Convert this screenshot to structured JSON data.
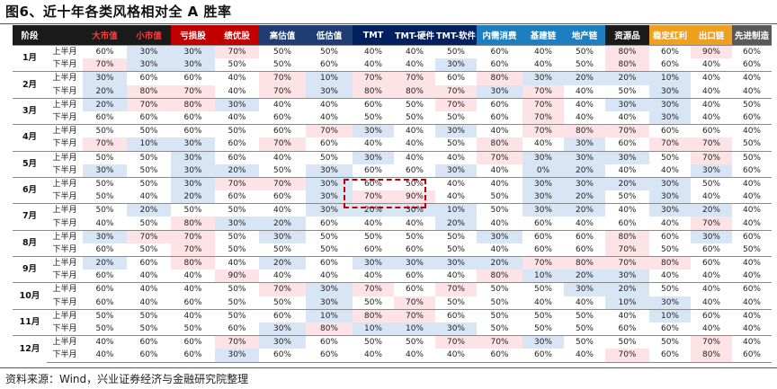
{
  "title": "图6、近十年各类风格相对全 A 胜率",
  "source": "资料来源：Wind，兴业证券经济与金融研究院整理",
  "colors": {
    "header_black": "#1a1a1a",
    "header_red": "#c00000",
    "header_blue": "#1f3d73",
    "header_dblue": "#002060",
    "header_sky": "#1e7fc0",
    "header_orange": "#f0a020",
    "header_gray": "#595959",
    "cell_high": "#fde3e5",
    "cell_low": "#d8e5f5"
  },
  "table": {
    "headers": [
      {
        "label": "阶段",
        "color": "#1a1a1a"
      },
      {
        "label": "",
        "color": "#1a1a1a"
      },
      {
        "label": "大市值",
        "color": "#1a1a1a",
        "text_color": "#ff3b3b"
      },
      {
        "label": "小市值",
        "color": "#1a1a1a",
        "text_color": "#ff3b3b"
      },
      {
        "label": "亏损股",
        "color": "#c00000"
      },
      {
        "label": "绩优股",
        "color": "#c00000"
      },
      {
        "label": "高估值",
        "color": "#1f3d73"
      },
      {
        "label": "低估值",
        "color": "#1f3d73"
      },
      {
        "label": "TMT",
        "color": "#002060"
      },
      {
        "label": "TMT-硬件",
        "color": "#002060"
      },
      {
        "label": "TMT-软件",
        "color": "#002060"
      },
      {
        "label": "内需消费",
        "color": "#1e7fc0"
      },
      {
        "label": "基建链",
        "color": "#1e7fc0"
      },
      {
        "label": "地产链",
        "color": "#1e7fc0"
      },
      {
        "label": "资源品",
        "color": "#1a1a1a"
      },
      {
        "label": "稳定红利",
        "color": "#f0a020"
      },
      {
        "label": "出口链",
        "color": "#f0a020"
      },
      {
        "label": "先进制造",
        "color": "#595959"
      }
    ],
    "months": [
      {
        "month": "1月",
        "rows": [
          {
            "half": "上半月",
            "values": [
              "60%",
              "30%",
              "30%",
              "70%",
              "50%",
              "50%",
              "40%",
              "40%",
              "50%",
              "60%",
              "40%",
              "50%",
              "80%",
              "60%",
              "90%",
              "60%"
            ]
          },
          {
            "half": "下半月",
            "values": [
              "70%",
              "30%",
              "30%",
              "50%",
              "50%",
              "60%",
              "40%",
              "40%",
              "30%",
              "60%",
              "40%",
              "50%",
              "80%",
              "60%",
              "40%",
              "60%"
            ]
          }
        ]
      },
      {
        "month": "2月",
        "rows": [
          {
            "half": "上半月",
            "values": [
              "30%",
              "60%",
              "60%",
              "40%",
              "70%",
              "10%",
              "70%",
              "70%",
              "60%",
              "80%",
              "30%",
              "20%",
              "20%",
              "10%",
              "40%",
              "40%"
            ]
          },
          {
            "half": "下半月",
            "values": [
              "20%",
              "80%",
              "70%",
              "40%",
              "70%",
              "30%",
              "80%",
              "80%",
              "70%",
              "30%",
              "70%",
              "40%",
              "50%",
              "30%",
              "40%",
              "40%"
            ]
          }
        ]
      },
      {
        "month": "3月",
        "rows": [
          {
            "half": "上半月",
            "values": [
              "20%",
              "70%",
              "80%",
              "30%",
              "40%",
              "40%",
              "60%",
              "50%",
              "70%",
              "60%",
              "70%",
              "40%",
              "30%",
              "30%",
              "40%",
              "50%"
            ]
          },
          {
            "half": "下半月",
            "values": [
              "60%",
              "60%",
              "60%",
              "40%",
              "60%",
              "40%",
              "50%",
              "50%",
              "50%",
              "60%",
              "70%",
              "40%",
              "40%",
              "30%",
              "40%",
              "60%"
            ]
          }
        ]
      },
      {
        "month": "4月",
        "rows": [
          {
            "half": "上半月",
            "values": [
              "50%",
              "50%",
              "60%",
              "50%",
              "60%",
              "70%",
              "30%",
              "40%",
              "30%",
              "40%",
              "70%",
              "80%",
              "70%",
              "60%",
              "60%",
              "40%"
            ]
          },
          {
            "half": "下半月",
            "values": [
              "70%",
              "10%",
              "30%",
              "60%",
              "70%",
              "60%",
              "40%",
              "40%",
              "50%",
              "80%",
              "40%",
              "30%",
              "60%",
              "70%",
              "70%",
              "50%"
            ]
          }
        ]
      },
      {
        "month": "5月",
        "rows": [
          {
            "half": "上半月",
            "values": [
              "50%",
              "50%",
              "30%",
              "60%",
              "40%",
              "50%",
              "30%",
              "40%",
              "40%",
              "70%",
              "30%",
              "30%",
              "30%",
              "50%",
              "70%",
              "50%"
            ]
          },
          {
            "half": "下半月",
            "values": [
              "30%",
              "50%",
              "30%",
              "20%",
              "50%",
              "30%",
              "60%",
              "60%",
              "30%",
              "40%",
              "0%",
              "20%",
              "40%",
              "40%",
              "30%",
              "60%"
            ]
          }
        ]
      },
      {
        "month": "6月",
        "rows": [
          {
            "half": "上半月",
            "values": [
              "50%",
              "50%",
              "30%",
              "70%",
              "70%",
              "30%",
              "60%",
              "50%",
              "40%",
              "40%",
              "30%",
              "30%",
              "20%",
              "30%",
              "50%",
              "40%"
            ]
          },
          {
            "half": "下半月",
            "values": [
              "50%",
              "40%",
              "20%",
              "60%",
              "60%",
              "30%",
              "70%",
              "90%",
              "40%",
              "50%",
              "30%",
              "20%",
              "50%",
              "30%",
              "40%",
              "40%"
            ]
          }
        ]
      },
      {
        "month": "7月",
        "rows": [
          {
            "half": "上半月",
            "values": [
              "50%",
              "20%",
              "50%",
              "50%",
              "40%",
              "30%",
              "20%",
              "30%",
              "10%",
              "50%",
              "30%",
              "20%",
              "40%",
              "30%",
              "20%",
              "40%"
            ]
          },
          {
            "half": "下半月",
            "values": [
              "40%",
              "50%",
              "80%",
              "30%",
              "20%",
              "60%",
              "40%",
              "40%",
              "20%",
              "40%",
              "60%",
              "40%",
              "60%",
              "40%",
              "70%",
              "40%"
            ]
          }
        ]
      },
      {
        "month": "8月",
        "rows": [
          {
            "half": "上半月",
            "values": [
              "30%",
              "70%",
              "70%",
              "50%",
              "30%",
              "50%",
              "50%",
              "50%",
              "50%",
              "30%",
              "60%",
              "60%",
              "80%",
              "60%",
              "30%",
              "60%"
            ]
          },
          {
            "half": "下半月",
            "values": [
              "60%",
              "50%",
              "70%",
              "50%",
              "50%",
              "50%",
              "60%",
              "60%",
              "50%",
              "40%",
              "60%",
              "60%",
              "70%",
              "50%",
              "60%",
              "50%"
            ]
          }
        ]
      },
      {
        "month": "9月",
        "rows": [
          {
            "half": "上半月",
            "values": [
              "20%",
              "60%",
              "80%",
              "40%",
              "20%",
              "60%",
              "30%",
              "30%",
              "30%",
              "20%",
              "70%",
              "80%",
              "70%",
              "80%",
              "60%",
              "40%"
            ]
          },
          {
            "half": "下半月",
            "values": [
              "60%",
              "40%",
              "40%",
              "90%",
              "40%",
              "40%",
              "40%",
              "60%",
              "40%",
              "80%",
              "10%",
              "20%",
              "30%",
              "40%",
              "40%",
              "40%"
            ]
          }
        ]
      },
      {
        "month": "10月",
        "rows": [
          {
            "half": "上半月",
            "values": [
              "60%",
              "40%",
              "40%",
              "50%",
              "70%",
              "30%",
              "70%",
              "60%",
              "70%",
              "50%",
              "50%",
              "30%",
              "20%",
              "50%",
              "40%",
              "60%"
            ]
          },
          {
            "half": "下半月",
            "values": [
              "60%",
              "40%",
              "60%",
              "50%",
              "50%",
              "30%",
              "50%",
              "70%",
              "50%",
              "50%",
              "40%",
              "40%",
              "10%",
              "30%",
              "40%",
              "40%"
            ]
          }
        ]
      },
      {
        "month": "11月",
        "rows": [
          {
            "half": "上半月",
            "values": [
              "50%",
              "50%",
              "40%",
              "50%",
              "60%",
              "10%",
              "80%",
              "70%",
              "60%",
              "50%",
              "50%",
              "50%",
              "40%",
              "10%",
              "60%",
              "40%"
            ]
          },
          {
            "half": "下半月",
            "values": [
              "50%",
              "50%",
              "50%",
              "60%",
              "30%",
              "80%",
              "10%",
              "10%",
              "30%",
              "50%",
              "50%",
              "50%",
              "60%",
              "60%",
              "40%",
              "40%"
            ]
          }
        ]
      },
      {
        "month": "12月",
        "rows": [
          {
            "half": "上半月",
            "values": [
              "40%",
              "60%",
              "60%",
              "70%",
              "30%",
              "60%",
              "50%",
              "50%",
              "70%",
              "70%",
              "30%",
              "50%",
              "50%",
              "50%",
              "70%",
              "40%"
            ]
          },
          {
            "half": "下半月",
            "values": [
              "40%",
              "60%",
              "60%",
              "30%",
              "60%",
              "60%",
              "40%",
              "40%",
              "40%",
              "60%",
              "60%",
              "40%",
              "70%",
              "60%",
              "80%",
              "60%"
            ]
          }
        ]
      }
    ]
  }
}
